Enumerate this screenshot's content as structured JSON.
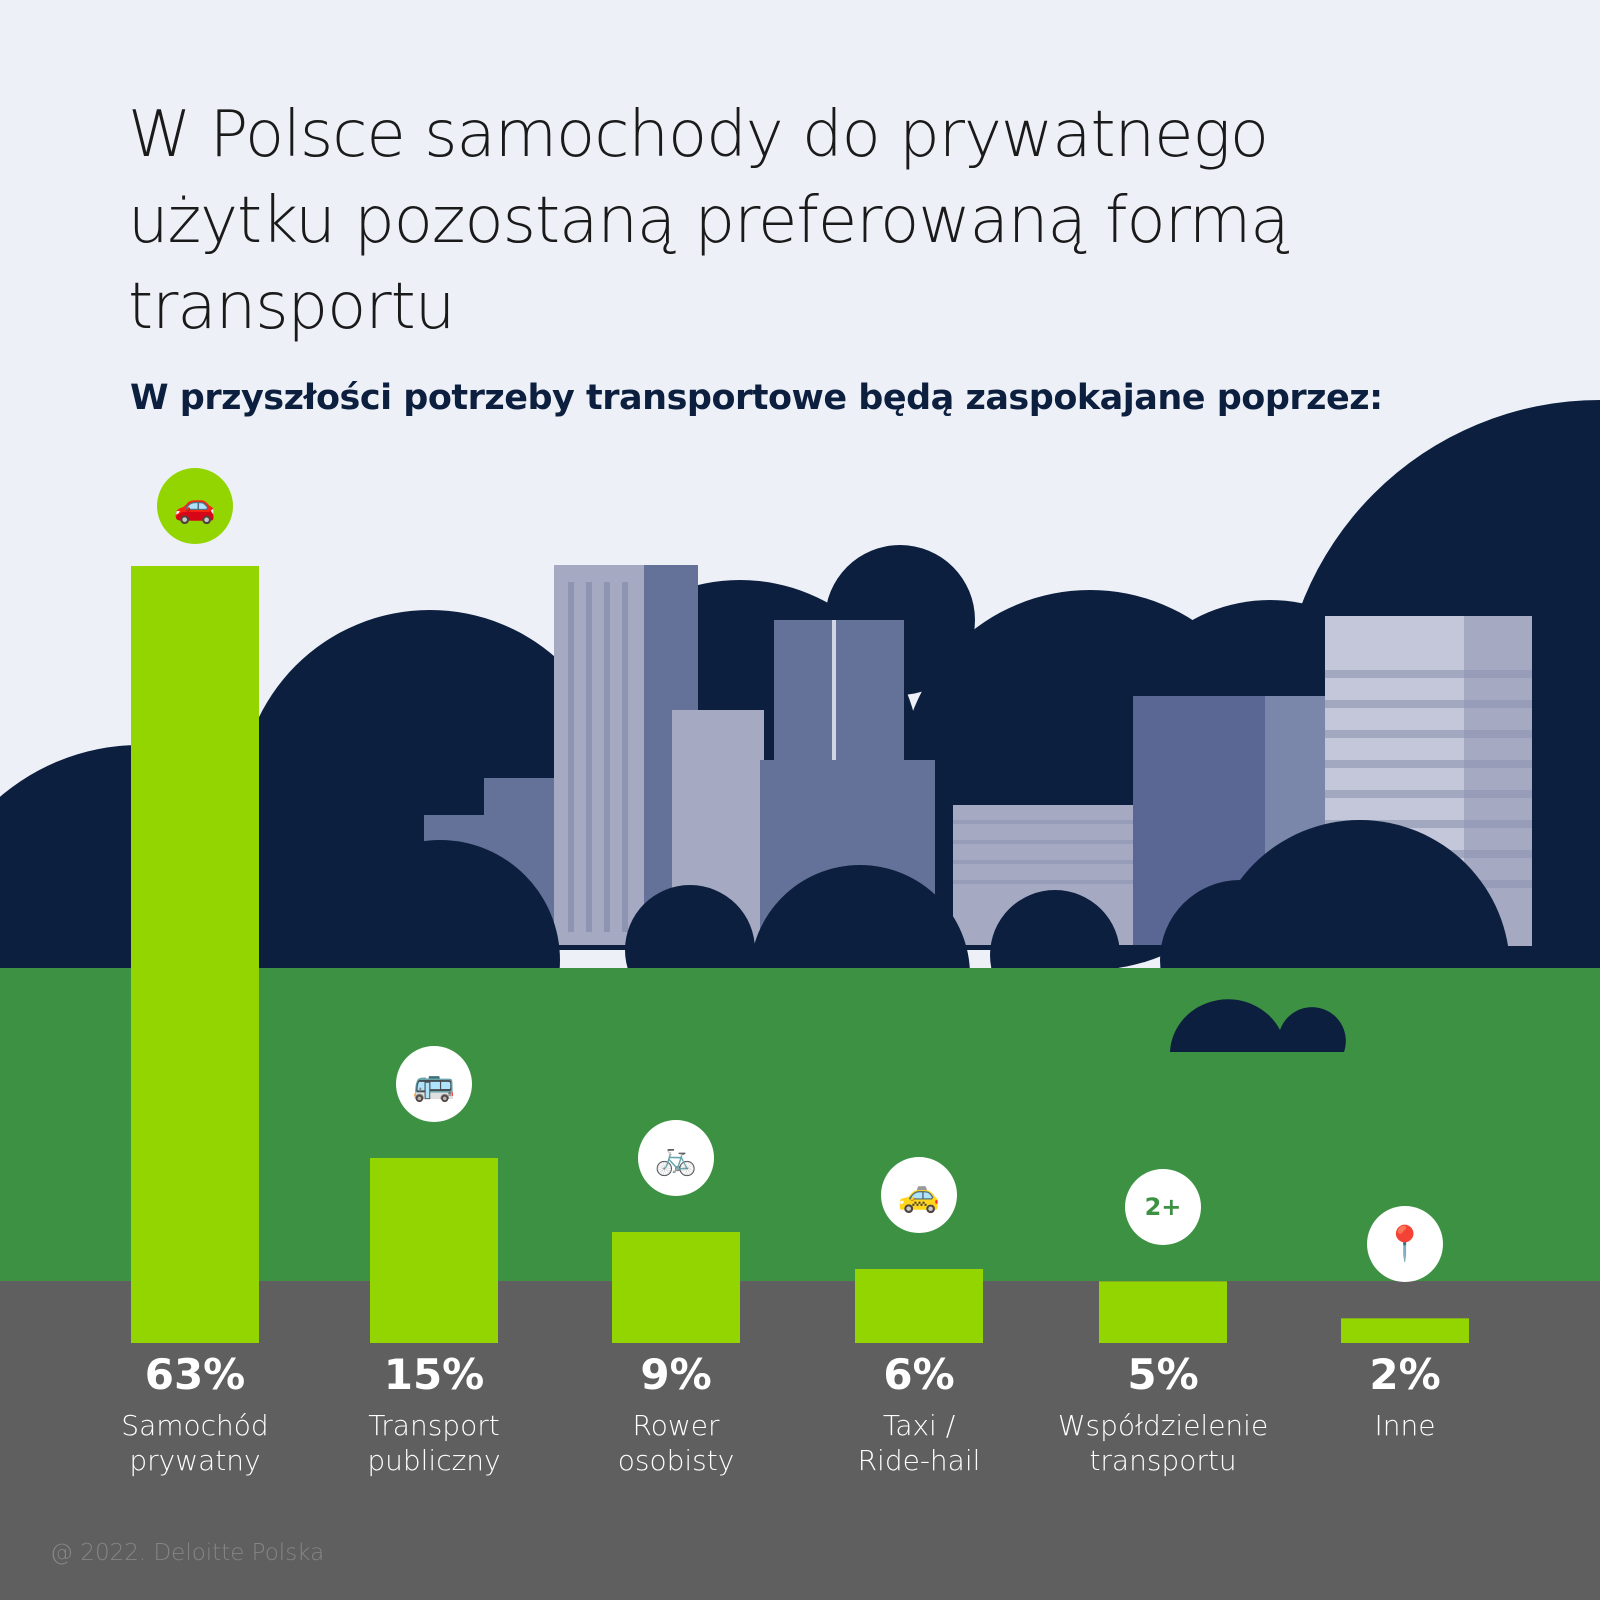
{
  "title": "W Polsce samochody do prywatnego użytku pozostaną preferowaną formą transportu",
  "subtitle": "W przyszłości potrzeby transportowe będą zaspokajane poprzez:",
  "copyright": "@ 2022. Deloitte Polska",
  "colors": {
    "bar": "#93D500",
    "sky": "#EDF0F7",
    "navy": "#0C1F3F",
    "grass": "#3C9242",
    "ground": "#5F5F5F",
    "icon_green": "#3C9242"
  },
  "chart_data": {
    "type": "bar",
    "categories": [
      "Samochód prywatny",
      "Transport publiczny",
      "Rower osobisty",
      "Taxi / Ride-hail",
      "Współdzielenie transportu",
      "Inne"
    ],
    "label_lines": [
      [
        "Samochód",
        "prywatny"
      ],
      [
        "Transport",
        "publiczny"
      ],
      [
        "Rower",
        "osobisty"
      ],
      [
        "Taxi /",
        "Ride-hail"
      ],
      [
        "Współdzielenie",
        "transportu"
      ],
      [
        "Inne"
      ]
    ],
    "values": [
      63,
      15,
      9,
      6,
      5,
      2
    ],
    "value_labels": [
      "63%",
      "15%",
      "9%",
      "6%",
      "5%",
      "2%"
    ],
    "icons": [
      "car-icon",
      "bus-icon",
      "bicycle-icon",
      "taxi-icon",
      "carpool-icon",
      "route-icon"
    ],
    "unit": "%",
    "ylim": [
      0,
      63
    ],
    "grid": false,
    "legend": "none"
  }
}
